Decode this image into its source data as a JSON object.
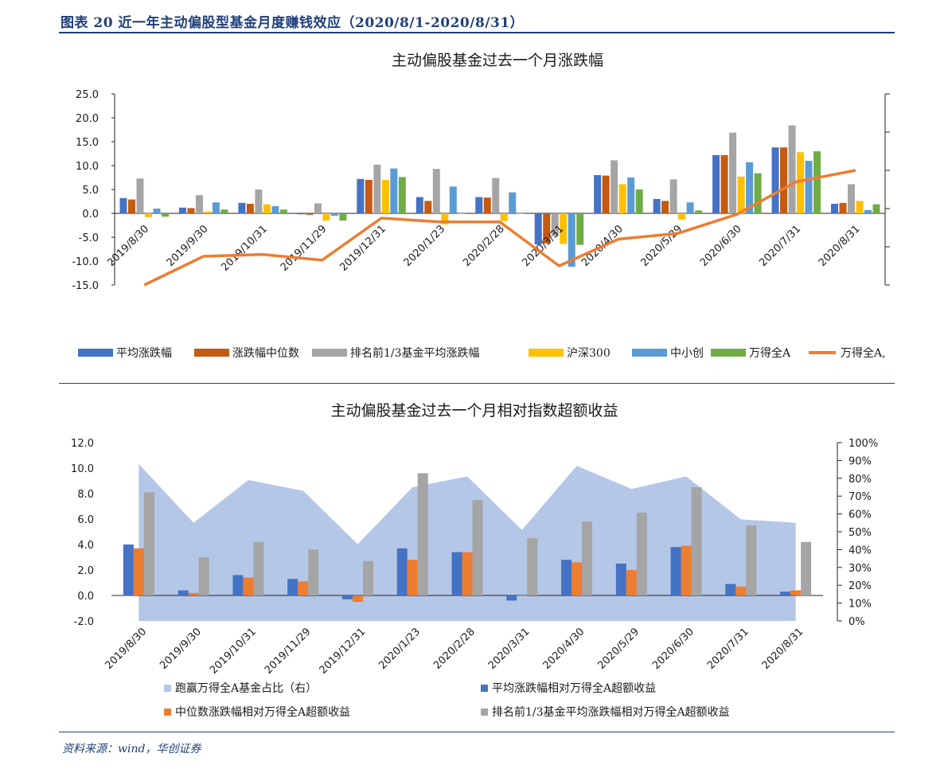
{
  "figure": {
    "title": "图表 20   近一年主动偏股型基金月度赚钱效应（2020/8/1-2020/8/31）",
    "source": "资料来源：wind，华创证券"
  },
  "chart_data": [
    {
      "type": "bar",
      "title": "主动偏股基金过去一个月涨跌幅",
      "categories": [
        "2019/8/30",
        "2019/9/30",
        "2019/10/31",
        "2019/11/29",
        "2019/12/31",
        "2020/1/23",
        "2020/2/28",
        "2020/3/31",
        "2020/4/30",
        "2020/5/29",
        "2020/6/30",
        "2020/7/31",
        "2020/8/31"
      ],
      "ylim": [
        -15,
        25
      ],
      "yticks": [
        "25.0",
        "20.0",
        "15.0",
        "10.0",
        "5.0",
        "0.0",
        "-5.0",
        "-10.0",
        "-15.0"
      ],
      "series": [
        {
          "name": "平均涨跌幅",
          "color": "#4472c4",
          "values": [
            3.2,
            1.2,
            2.2,
            -0.2,
            7.2,
            3.4,
            3.4,
            -6.5,
            8.0,
            3.0,
            12.2,
            13.8,
            2.0
          ]
        },
        {
          "name": "涨跌幅中位数",
          "color": "#c55a11",
          "values": [
            2.9,
            1.1,
            2.0,
            -0.3,
            7.0,
            2.6,
            3.3,
            -6.3,
            7.9,
            2.6,
            12.2,
            13.8,
            2.2
          ]
        },
        {
          "name": "排名前1/3基金平均涨跌幅",
          "color": "#a5a5a5",
          "values": [
            7.3,
            3.8,
            5.0,
            2.1,
            10.2,
            9.3,
            7.4,
            -4.8,
            11.1,
            7.1,
            16.9,
            18.4,
            6.1
          ]
        },
        {
          "name": "沪深300",
          "color": "#ffc000",
          "values": [
            -0.8,
            0.4,
            1.9,
            -1.5,
            7.0,
            -2.3,
            -1.6,
            -6.4,
            6.1,
            -1.3,
            7.7,
            12.8,
            2.6
          ]
        },
        {
          "name": "中小创",
          "color": "#5b9bd5",
          "values": [
            1.0,
            2.3,
            1.5,
            -0.5,
            9.4,
            5.6,
            4.4,
            -11.2,
            7.5,
            2.3,
            10.7,
            11.0,
            0.7
          ]
        },
        {
          "name": "万得全A",
          "color": "#70ad47",
          "values": [
            -0.7,
            0.8,
            0.8,
            -1.5,
            7.6,
            0.0,
            0.0,
            -6.6,
            5.0,
            0.6,
            8.4,
            13.0,
            1.9
          ]
        },
        {
          "name": "万得全A赚钱效应（右）",
          "color": "#ed7d31",
          "kind": "line",
          "values": [
            0.0,
            1.5,
            1.6,
            1.3,
            3.5,
            3.3,
            3.3,
            1.0,
            2.4,
            2.7,
            3.7,
            5.4,
            6.0
          ]
        }
      ],
      "right_ylim": [
        0,
        10
      ],
      "legend_position": "bottom",
      "legend": [
        "平均涨跌幅",
        "涨跌幅中位数",
        "排名前1/3基金平均涨跌幅",
        "沪深300",
        "中小创",
        "万得全A",
        "万得全A,"
      ]
    },
    {
      "type": "bar",
      "title": "主动偏股基金过去一个月相对指数超额收益",
      "categories": [
        "2019/8/30",
        "2019/9/30",
        "2019/10/31",
        "2019/11/29",
        "2019/12/31",
        "2020/1/23",
        "2020/2/28",
        "2020/3/31",
        "2020/4/30",
        "2020/5/29",
        "2020/6/30",
        "2020/7/31",
        "2020/8/31"
      ],
      "ylim": [
        -2,
        12
      ],
      "yticks": [
        "12.0",
        "10.0",
        "8.0",
        "6.0",
        "4.0",
        "2.0",
        "0.0",
        "-2.0"
      ],
      "right_ylim": [
        0,
        100
      ],
      "right_yticks": [
        "100%",
        "90%",
        "80%",
        "70%",
        "60%",
        "50%",
        "40%",
        "30%",
        "20%",
        "10%",
        "0%"
      ],
      "series": [
        {
          "name": "跑赢万得全A基金占比（右）",
          "color": "#b4c7e7",
          "kind": "area",
          "values": [
            88,
            55,
            79,
            73,
            43,
            75,
            81,
            51,
            87,
            74,
            81,
            57,
            55
          ]
        },
        {
          "name": "平均涨跌幅相对万得全A超额收益",
          "color": "#4472c4",
          "values": [
            4.0,
            0.4,
            1.6,
            1.3,
            -0.3,
            3.7,
            3.4,
            -0.4,
            2.8,
            2.5,
            3.8,
            0.9,
            0.3
          ]
        },
        {
          "name": "中位数涨跌幅相对万得全A超额收益",
          "color": "#ed7d31",
          "values": [
            3.7,
            0.2,
            1.4,
            1.1,
            -0.5,
            2.8,
            3.4,
            0.0,
            2.6,
            2.0,
            3.9,
            0.7,
            0.4
          ]
        },
        {
          "name": "排名前1/3基金平均涨跌幅相对万得全A超额收益",
          "color": "#a5a5a5",
          "values": [
            8.1,
            3.0,
            4.2,
            3.6,
            2.7,
            9.6,
            7.5,
            4.5,
            5.8,
            6.5,
            8.5,
            5.5,
            4.2
          ]
        }
      ],
      "legend_position": "bottom",
      "legend": [
        "跑赢万得全A基金占比（右）",
        "平均涨跌幅相对万得全A超额收益",
        "中位数涨跌幅相对万得全A超额收益",
        "排名前1/3基金平均涨跌幅相对万得全A超额收益"
      ]
    }
  ]
}
